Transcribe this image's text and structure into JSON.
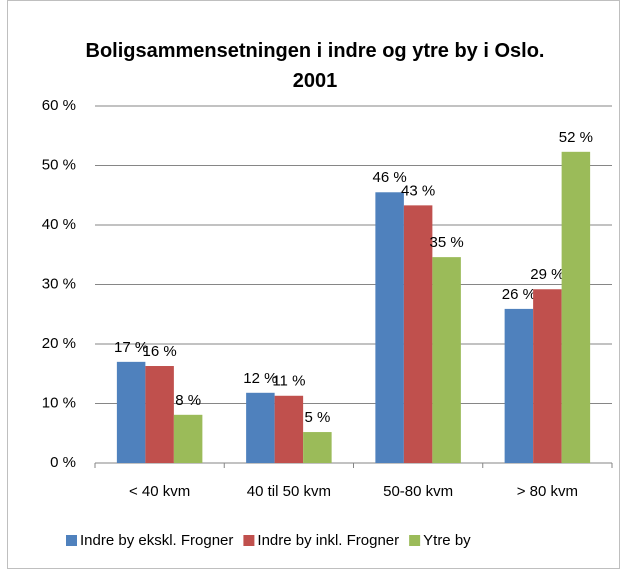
{
  "chart_data": {
    "type": "bar",
    "title": "Boligsammensetningen i indre og ytre by i Oslo. 2001",
    "categories": [
      "< 40 kvm",
      "40 til 50 kvm",
      "50-80 kvm",
      "> 80 kvm"
    ],
    "series": [
      {
        "name": "Indre by ekskl. Frogner",
        "color": "#4f81bd",
        "values": [
          17.0,
          11.8,
          45.5,
          25.9
        ],
        "value_labels": [
          "17 %",
          "12 %",
          "46 %",
          "26 %"
        ]
      },
      {
        "name": "Indre by inkl. Frogner",
        "color": "#c0504d",
        "values": [
          16.3,
          11.3,
          43.3,
          29.2
        ],
        "value_labels": [
          "16 %",
          "11 %",
          "43 %",
          "29 %"
        ]
      },
      {
        "name": "Ytre by",
        "color": "#9bbb59",
        "values": [
          8.1,
          5.2,
          34.6,
          52.3
        ],
        "value_labels": [
          "8 %",
          "5 %",
          "35 %",
          "52 %"
        ]
      }
    ],
    "ylim": [
      0,
      60
    ],
    "yticks": [
      {
        "value": 0,
        "label": "0 %"
      },
      {
        "value": 10,
        "label": "10 %"
      },
      {
        "value": 20,
        "label": "20 %"
      },
      {
        "value": 30,
        "label": "30 %"
      },
      {
        "value": 40,
        "label": "40 %"
      },
      {
        "value": 50,
        "label": "50 %"
      },
      {
        "value": 60,
        "label": "60 %"
      }
    ],
    "grid": true,
    "legend": "bottom"
  }
}
